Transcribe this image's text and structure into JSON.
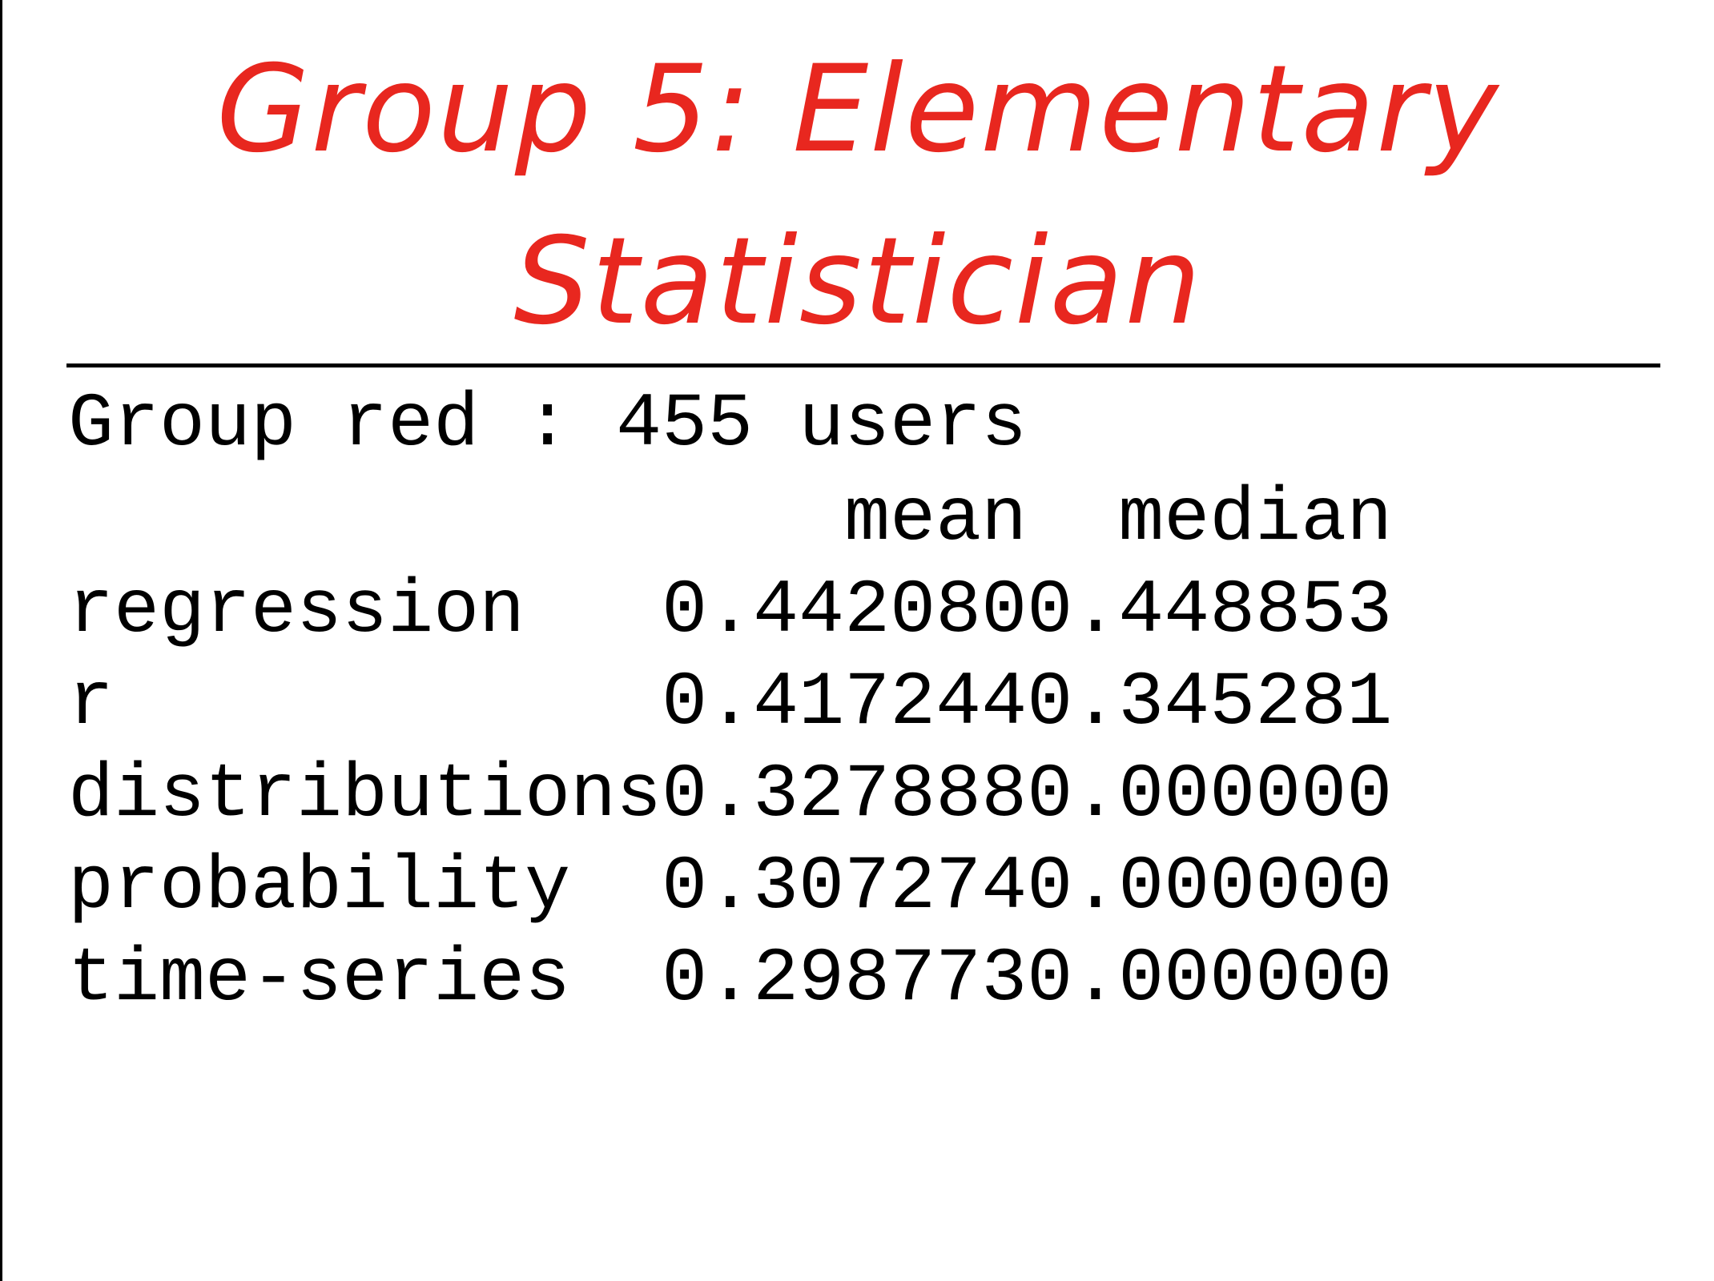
{
  "title": {
    "line1": "Group 5: Elementary",
    "line2": "Statistician",
    "color": "#e8271f"
  },
  "output": {
    "group_line": "Group red : 455 users",
    "columns": [
      "mean",
      "median"
    ],
    "rows": [
      {
        "label": "regression",
        "mean": "0.442080",
        "median": "0.448853"
      },
      {
        "label": "r",
        "mean": "0.417244",
        "median": "0.345281"
      },
      {
        "label": "distributions",
        "mean": "0.327888",
        "median": "0.000000"
      },
      {
        "label": "probability",
        "mean": "0.307274",
        "median": "0.000000"
      },
      {
        "label": "time-series",
        "mean": "0.298773",
        "median": "0.000000"
      }
    ]
  }
}
